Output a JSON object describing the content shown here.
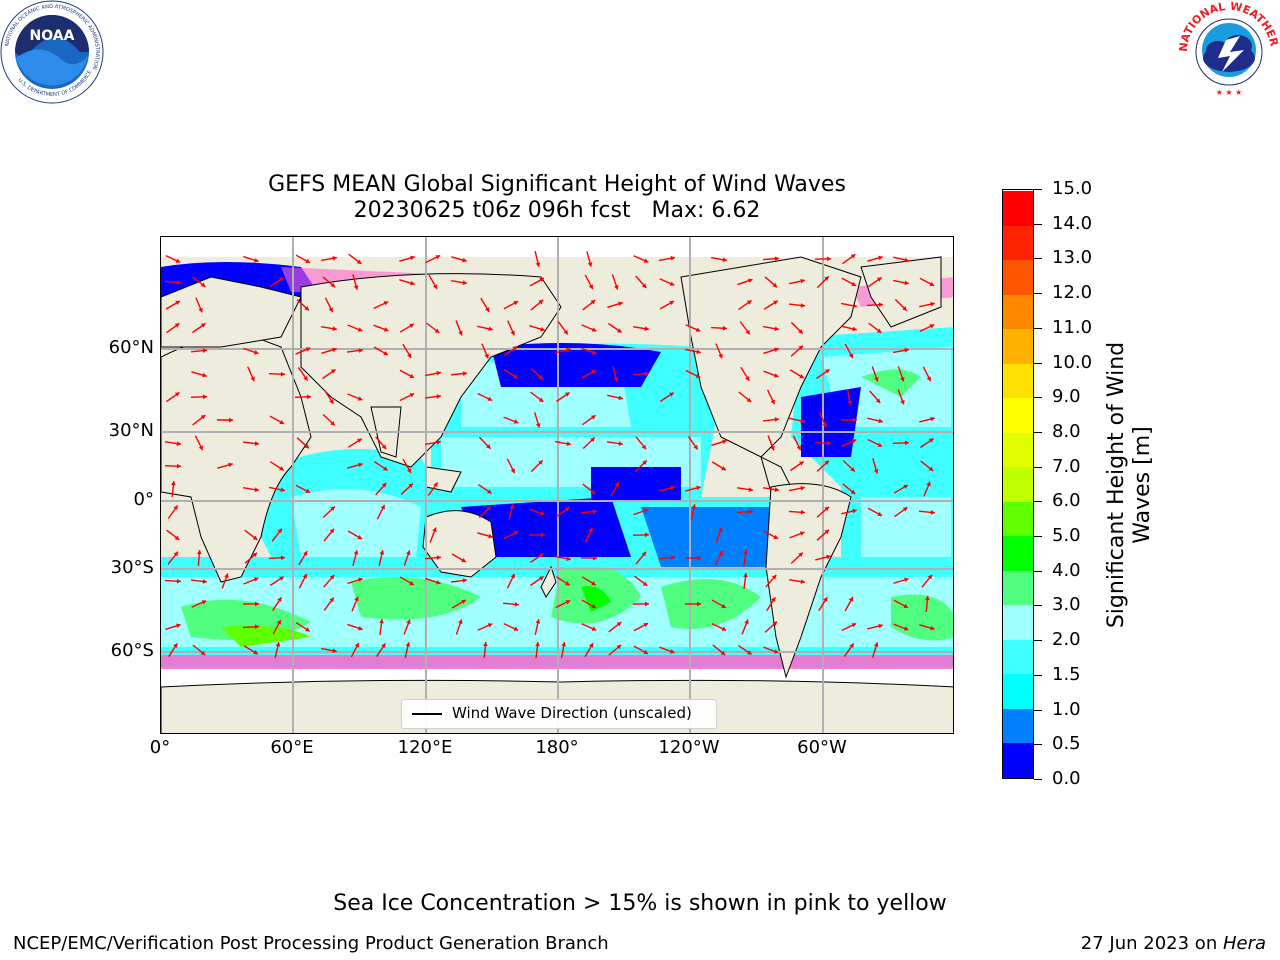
{
  "logos": {
    "left": {
      "name": "NOAA",
      "ring_text": "NATIONAL OCEANIC AND ATMOSPHERIC ADMINISTRATION",
      "bottom_text": "U.S. DEPARTMENT OF COMMERCE"
    },
    "right": {
      "name": "NATIONAL WEATHER SERVICE"
    }
  },
  "title": {
    "line1": "GEFS MEAN Global Significant Height of Wind Waves",
    "line2": "20230625 t06z 096h fcst   Max: 6.62"
  },
  "map": {
    "x_ticks": [
      "0°",
      "60°E",
      "120°E",
      "180°",
      "120°W",
      "60°W"
    ],
    "y_ticks": [
      "60°N",
      "30°N",
      "0°",
      "30°S",
      "60°S"
    ],
    "legend": "Wind Wave Direction (unscaled)",
    "colors": {
      "land": "#eeecdc",
      "coast": "#000000",
      "grid": "#b0b0b0",
      "arrows": "#ff0000",
      "sea_ice": "#ff66cc"
    }
  },
  "colorbar": {
    "label_line1": "Significant Height of Wind",
    "label_line2": "Waves [m]",
    "tick_labels": [
      "0.0",
      "0.5",
      "1.0",
      "1.5",
      "2.0",
      "3.0",
      "4.0",
      "5.0",
      "6.0",
      "7.0",
      "8.0",
      "9.0",
      "10.0",
      "11.0",
      "12.0",
      "13.0",
      "14.0",
      "15.0"
    ],
    "colors": [
      "#0000ff",
      "#0080ff",
      "#00ffff",
      "#40ffff",
      "#a0ffff",
      "#50ff80",
      "#00ff00",
      "#60ff00",
      "#c0ff00",
      "#e0ff00",
      "#ffff00",
      "#ffe000",
      "#ffb000",
      "#ff8800",
      "#ff5500",
      "#ff2200",
      "#ff0000"
    ]
  },
  "note": "Sea Ice Concentration > 15% is shown in pink to yellow",
  "footer": {
    "left": "NCEP/EMC/Verification Post Processing Product Generation Branch",
    "date": "27 Jun 2023 on ",
    "machine": "Hera"
  }
}
